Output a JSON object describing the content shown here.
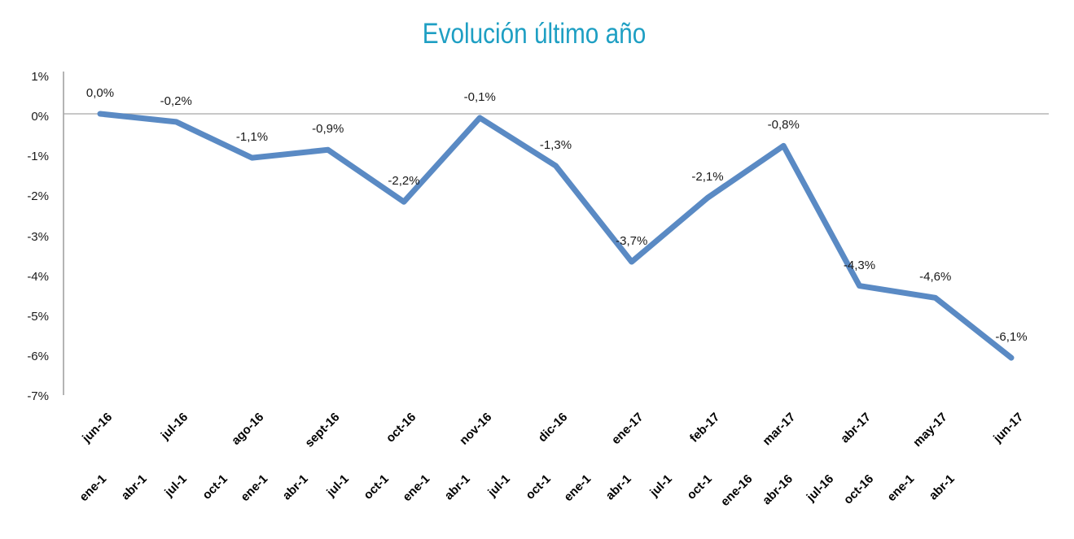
{
  "chart_data": {
    "type": "line",
    "title": "Evolución último año",
    "categories": [
      "jun-16",
      "jul-16",
      "ago-16",
      "sept-16",
      "oct-16",
      "nov-16",
      "dic-16",
      "ene-17",
      "feb-17",
      "mar-17",
      "abr-17",
      "may-17",
      "jun-17"
    ],
    "values": [
      0.0,
      -0.2,
      -1.1,
      -0.9,
      -2.2,
      -0.1,
      -1.3,
      -3.7,
      -2.1,
      -0.8,
      -4.3,
      -4.6,
      -6.1
    ],
    "data_labels": [
      "0,0%",
      "-0,2%",
      "-1,1%",
      "-0,9%",
      "-2,2%",
      "-0,1%",
      "-1,3%",
      "-3,7%",
      "-2,1%",
      "-0,8%",
      "-4,3%",
      "-4,6%",
      "-6,1%"
    ],
    "y_ticks": [
      {
        "label": "1%",
        "value": 1
      },
      {
        "label": "0%",
        "value": 0
      },
      {
        "label": "-1%",
        "value": -1
      },
      {
        "label": "-2%",
        "value": -2
      },
      {
        "label": "-3%",
        "value": -3
      },
      {
        "label": "-4%",
        "value": -4
      },
      {
        "label": "-5%",
        "value": -5
      },
      {
        "label": "-6%",
        "value": -6
      },
      {
        "label": "-7%",
        "value": -7
      }
    ],
    "ylim": [
      -7,
      1
    ],
    "xlabel": "",
    "ylabel": "",
    "legend": "none",
    "grid": "zero-gridline-only",
    "secondary_x_labels": [
      "ene-1",
      "abr-1",
      "jul-1",
      "oct-1",
      "ene-1",
      "abr-1",
      "jul-1",
      "oct-1",
      "ene-1",
      "abr-1",
      "jul-1",
      "oct-1",
      "ene-1",
      "abr-1",
      "jul-1",
      "oct-1",
      "ene-16",
      "abr-16",
      "jul-16",
      "oct-16",
      "ene-1",
      "abr-1"
    ],
    "colors": {
      "series": "#5A8AC4",
      "title": "#1E9FC3",
      "axis": "#8C8C8C",
      "gridline": "#A6A6A6",
      "label_text": "#1A1A1A",
      "x_label_text": "#000000"
    }
  }
}
